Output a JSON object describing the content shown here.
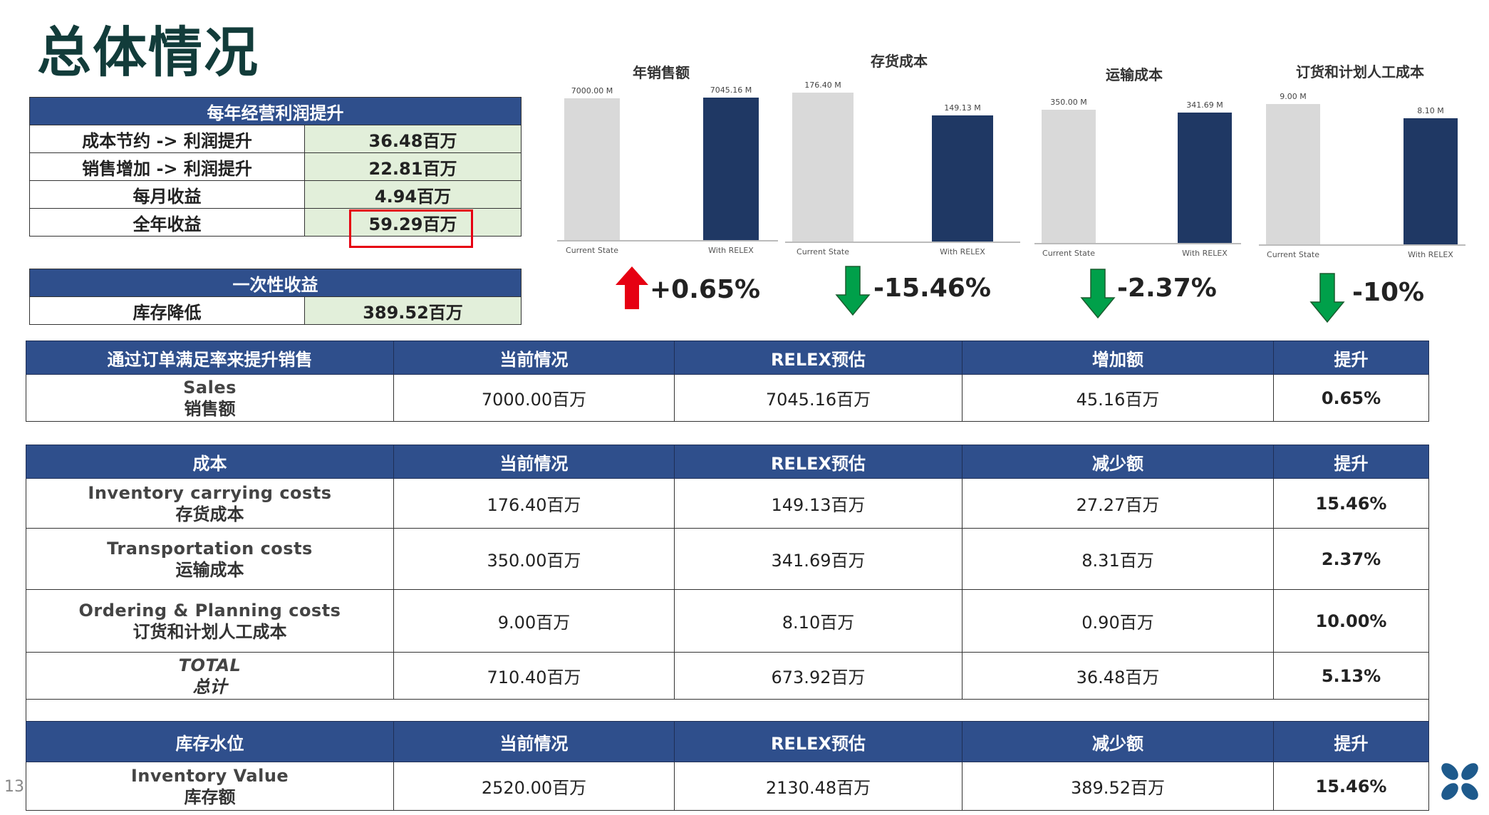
{
  "page_title": "总体情况",
  "profit_table": {
    "header": "每年经营利润提升",
    "rows": [
      {
        "label": "成本节约 -> 利润提升",
        "value": "36.48百万"
      },
      {
        "label": "销售增加 -> 利润提升",
        "value": "22.81百万"
      },
      {
        "label": "每月收益",
        "value": "4.94百万"
      },
      {
        "label": "全年收益",
        "value": "59.29百万"
      }
    ]
  },
  "onetime_table": {
    "header": "一次性收益",
    "rows": [
      {
        "label": "库存降低",
        "value": "389.52百万"
      }
    ]
  },
  "chart_data": [
    {
      "type": "bar",
      "title": "年销售额",
      "categories": [
        "Current State",
        "With RELEX"
      ],
      "values": [
        7000.0,
        7045.16
      ],
      "value_labels": [
        "7000.00 M",
        "7045.16 M"
      ],
      "delta": "+0.65%",
      "direction": "up",
      "colors": [
        "#d9d9d9",
        "#1f3864"
      ]
    },
    {
      "type": "bar",
      "title": "存货成本",
      "categories": [
        "Current State",
        "With RELEX"
      ],
      "values": [
        176.4,
        149.13
      ],
      "value_labels": [
        "176.40 M",
        "149.13 M"
      ],
      "delta": "-15.46%",
      "direction": "down",
      "colors": [
        "#d9d9d9",
        "#1f3864"
      ]
    },
    {
      "type": "bar",
      "title": "运输成本",
      "categories": [
        "Current State",
        "With RELEX"
      ],
      "values": [
        350.0,
        341.69
      ],
      "value_labels": [
        "350.00 M",
        "341.69 M"
      ],
      "delta": "-2.37%",
      "direction": "down",
      "colors": [
        "#d9d9d9",
        "#1f3864"
      ]
    },
    {
      "type": "bar",
      "title": "订货和计划人工成本",
      "categories": [
        "Current State",
        "With RELEX"
      ],
      "values": [
        9.0,
        8.1
      ],
      "value_labels": [
        "9.00 M",
        "8.10 M"
      ],
      "delta": "-10%",
      "direction": "down",
      "colors": [
        "#d9d9d9",
        "#1f3864"
      ]
    }
  ],
  "sales_table": {
    "headers": [
      "通过订单满足率来提升销售",
      "当前情况",
      "RELEX预估",
      "增加额",
      "提升"
    ],
    "rows": [
      {
        "en": "Sales",
        "cn": "销售额",
        "current": "7000.00百万",
        "relex": "7045.16百万",
        "diff": "45.16百万",
        "improve": "0.65%"
      }
    ]
  },
  "cost_table": {
    "headers": [
      "成本",
      "当前情况",
      "RELEX预估",
      "减少额",
      "提升"
    ],
    "rows": [
      {
        "en": "Inventory carrying costs",
        "cn": "存货成本",
        "current": "176.40百万",
        "relex": "149.13百万",
        "diff": "27.27百万",
        "improve": "15.46%"
      },
      {
        "en": "Transportation costs",
        "cn": "运输成本",
        "current": "350.00百万",
        "relex": "341.69百万",
        "diff": "8.31百万",
        "improve": "2.37%"
      },
      {
        "en": "Ordering & Planning costs",
        "cn": "订货和计划人工成本",
        "current": "9.00百万",
        "relex": "8.10百万",
        "diff": "0.90百万",
        "improve": "10.00%"
      },
      {
        "en": "TOTAL",
        "cn": "总计",
        "current": "710.40百万",
        "relex": "673.92百万",
        "diff": "36.48百万",
        "improve": "5.13%"
      }
    ]
  },
  "inventory_table": {
    "headers": [
      "库存水位",
      "当前情况",
      "RELEX预估",
      "减少额",
      "提升"
    ],
    "rows": [
      {
        "en": "Inventory Value",
        "cn": "库存额",
        "current": "2520.00百万",
        "relex": "2130.48百万",
        "diff": "389.52百万",
        "improve": "15.46%"
      }
    ]
  },
  "page_number": "13",
  "colors": {
    "header_blue": "#2f4f8c",
    "value_green": "#e2efda",
    "bar_navy": "#1f3864",
    "bar_gray": "#d9d9d9",
    "arrow_red": "#e60012",
    "arrow_green": "#00a04a"
  }
}
